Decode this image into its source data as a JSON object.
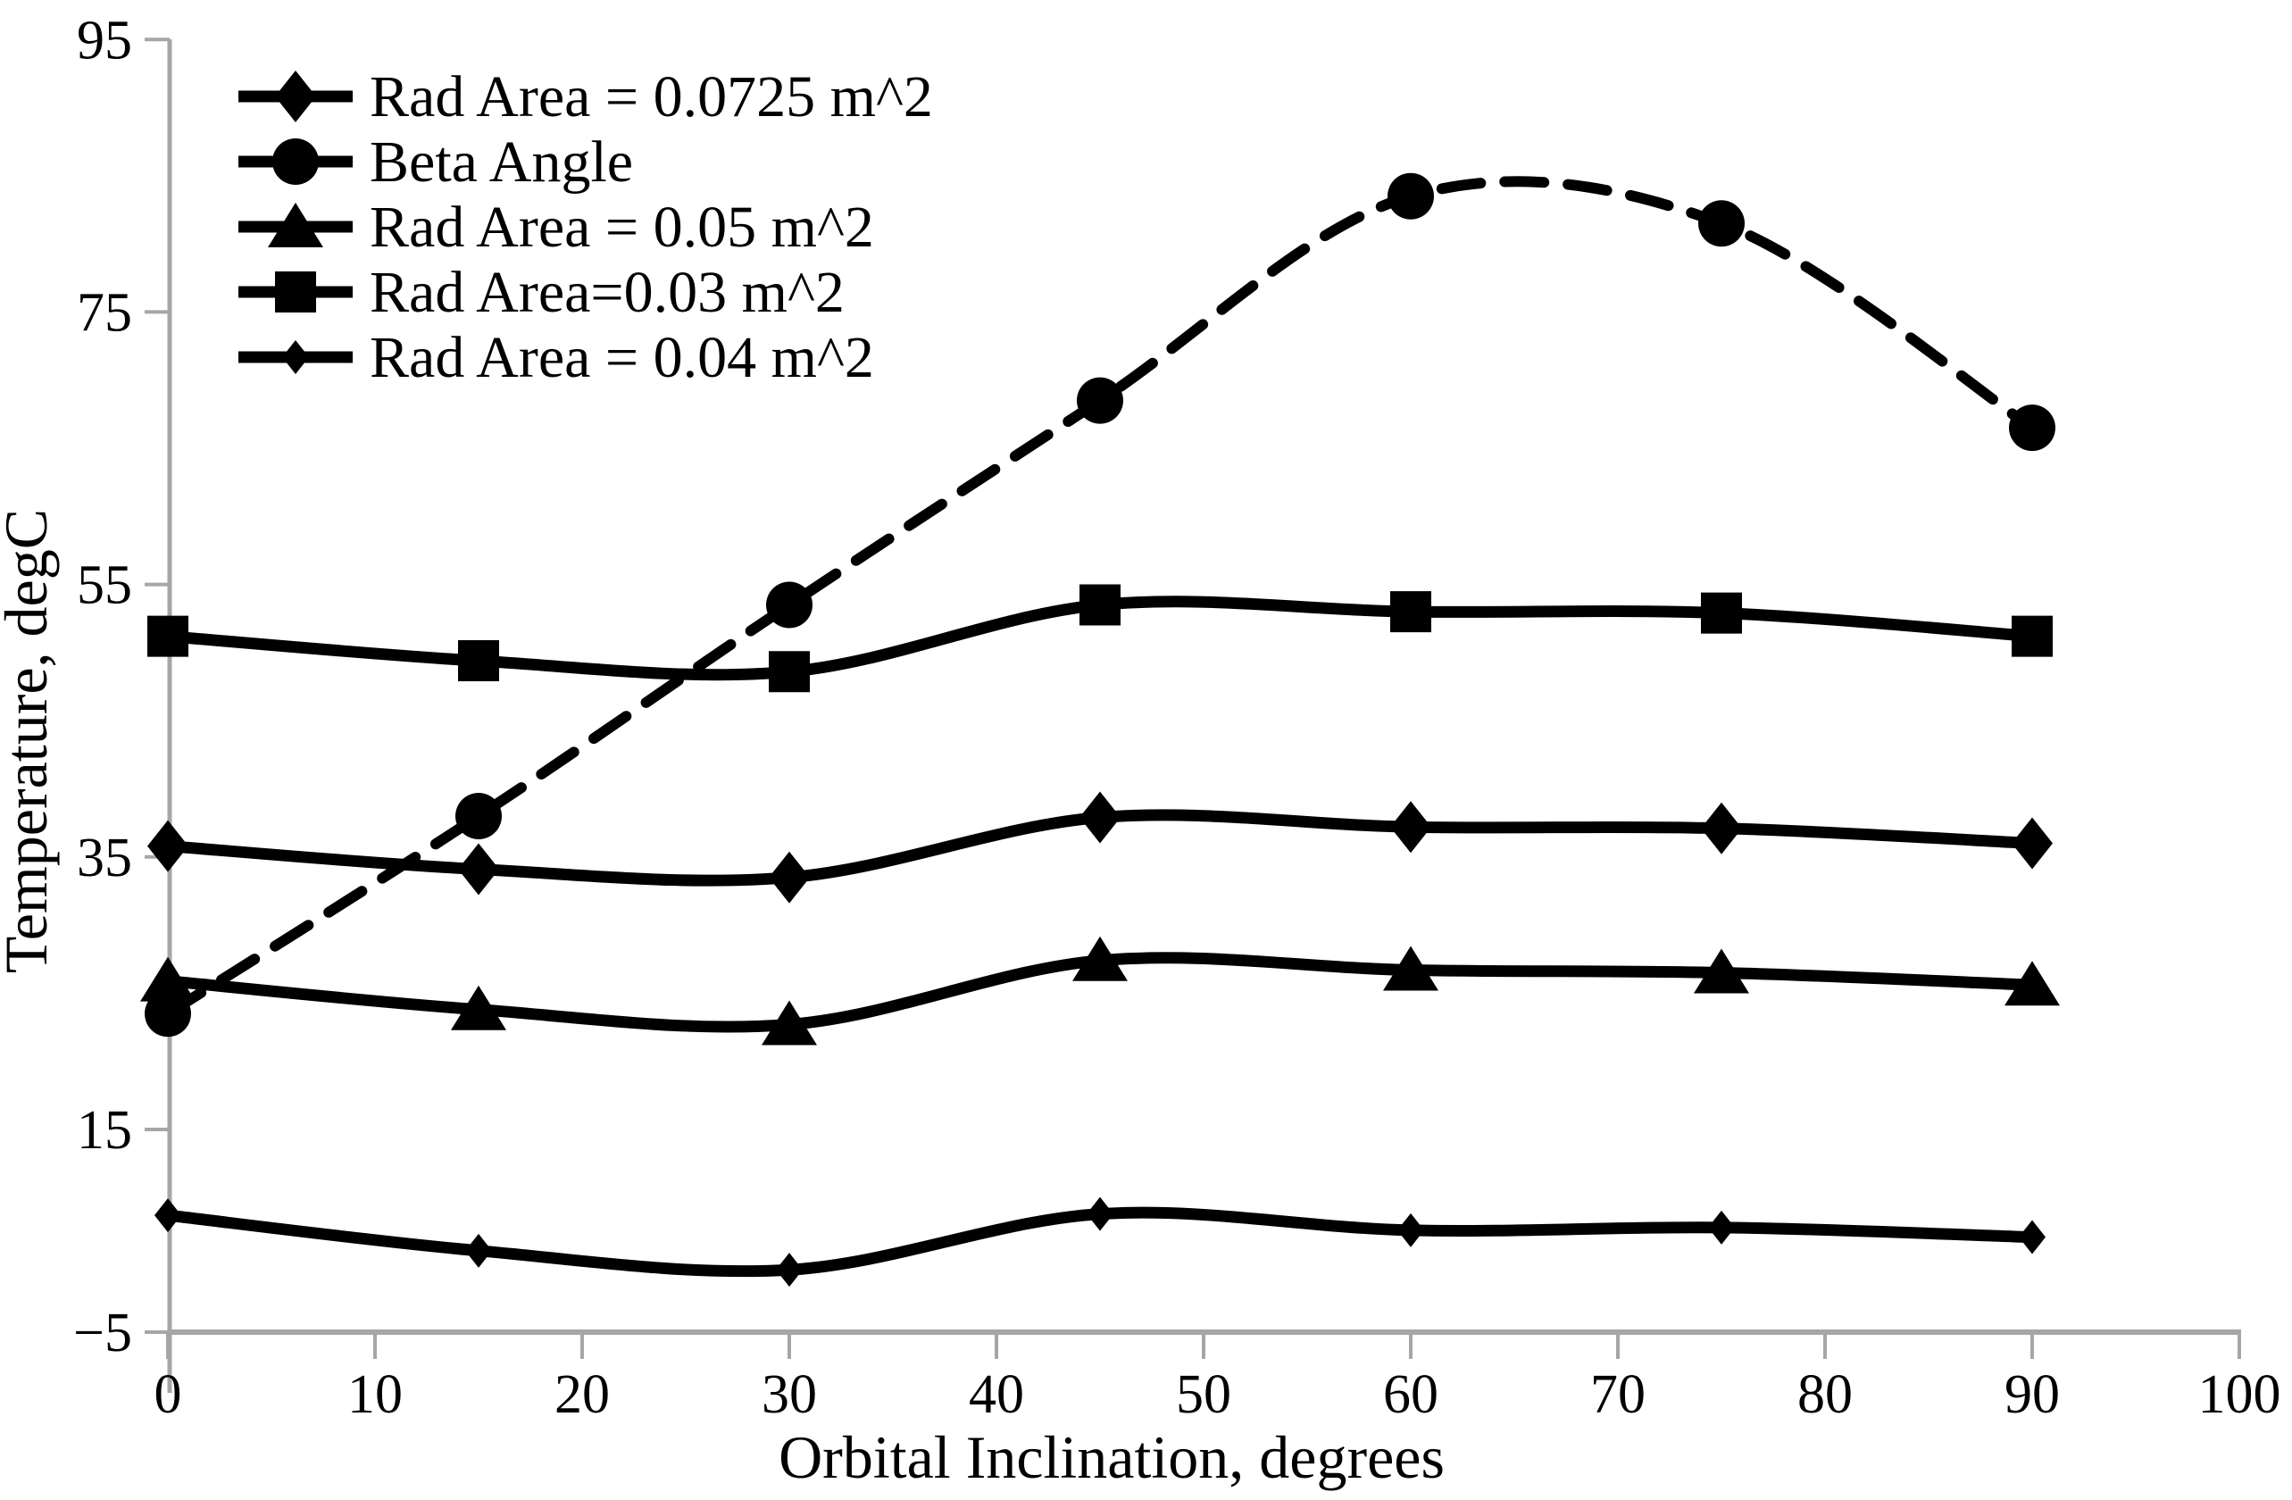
{
  "chart_data": {
    "type": "line",
    "title": "",
    "xlabel": "Orbital Inclination, degrees",
    "ylabel": "Temperature, degC",
    "xlim": [
      0,
      100
    ],
    "ylim": [
      -5,
      95
    ],
    "grid": false,
    "background": "#ffffff",
    "axis_color": "#a6a6a6",
    "data_color": "#000000",
    "legend_position": "inside-top-left",
    "x_tick_values": [
      0,
      10,
      20,
      30,
      40,
      50,
      60,
      70,
      80,
      90,
      100
    ],
    "x_tick_labels": [
      "0",
      "10",
      "20",
      "30",
      "40",
      "50",
      "60",
      "70",
      "80",
      "90",
      "100"
    ],
    "y_tick_values": [
      95,
      75,
      55,
      35,
      15,
      -5
    ],
    "y_tick_labels": [
      "95",
      "75",
      "55",
      "35",
      "15",
      "−5"
    ],
    "x": [
      0,
      15,
      30,
      45,
      60,
      75,
      90
    ],
    "series": [
      {
        "name": "Rad Area = 0.0725 m^2",
        "marker": "diamond-large",
        "line_style": "solid",
        "smooth": true,
        "values": [
          35.8,
          34.1,
          33.5,
          37.9,
          37.2,
          37.1,
          36.0
        ]
      },
      {
        "name": "Beta Angle",
        "marker": "circle",
        "line_style": "dashed",
        "smooth": true,
        "values": [
          23.5,
          38.0,
          53.5,
          68.5,
          83.5,
          81.5,
          66.5
        ]
      },
      {
        "name": "Rad Area = 0.05 m^2",
        "marker": "triangle",
        "line_style": "solid",
        "smooth": true,
        "values": [
          25.9,
          23.8,
          22.7,
          27.4,
          26.7,
          26.5,
          25.6
        ]
      },
      {
        "name": "Rad Area=0.03 m^2",
        "marker": "square",
        "line_style": "solid",
        "smooth": true,
        "values": [
          51.2,
          49.4,
          48.6,
          53.5,
          53.0,
          52.9,
          51.2
        ]
      },
      {
        "name": "Rad Area = 0.04 m^2",
        "marker": "diamond-small",
        "line_style": "solid",
        "smooth": true,
        "values": [
          8.7,
          6.1,
          4.7,
          8.8,
          7.6,
          7.8,
          7.1
        ]
      }
    ]
  }
}
